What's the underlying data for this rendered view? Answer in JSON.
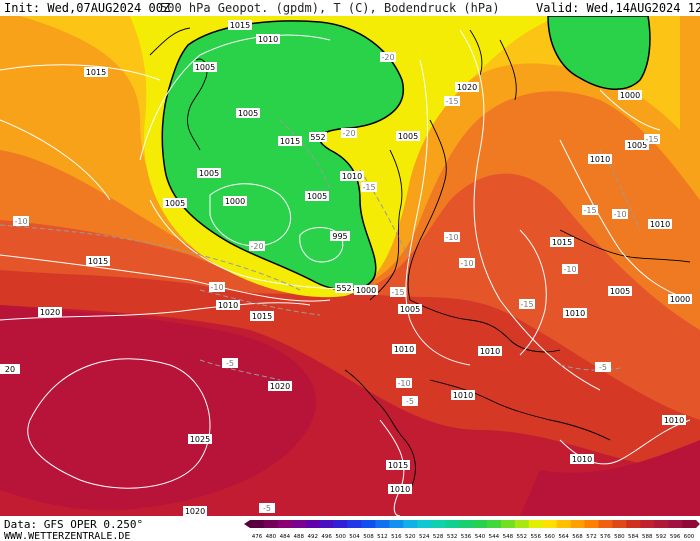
{
  "header": {
    "init": "Init: Wed,07AUG2024 00Z",
    "title": "500 hPa Geopot. (gpdm), T (C), Bodendruck (hPa)",
    "valid": "Valid: Wed,14AUG2024 12Z"
  },
  "footer": {
    "data_source": "Data: GFS OPER 0.250°",
    "website": "WWW.WETTERZENTRALE.DE"
  },
  "colorbar": {
    "ticks": [
      "476",
      "480",
      "484",
      "488",
      "492",
      "496",
      "500",
      "504",
      "508",
      "512",
      "516",
      "520",
      "524",
      "528",
      "532",
      "536",
      "540",
      "544",
      "548",
      "552",
      "556",
      "560",
      "564",
      "568",
      "572",
      "576",
      "580",
      "584",
      "588",
      "592",
      "596",
      "600"
    ],
    "colors": [
      "#5a0040",
      "#74005a",
      "#8a0074",
      "#7a0090",
      "#6000a8",
      "#4810c0",
      "#3020d8",
      "#2038e8",
      "#1050f0",
      "#1070f0",
      "#1090f0",
      "#10b0e8",
      "#10c8d0",
      "#10d0b0",
      "#10d090",
      "#18d070",
      "#28d050",
      "#40d838",
      "#70e020",
      "#a8e810",
      "#e0f000",
      "#ffe000",
      "#ffc000",
      "#ffa000",
      "#ff8000",
      "#f06010",
      "#e04818",
      "#d03020",
      "#c02030",
      "#b01838",
      "#a01040",
      "#900838"
    ]
  },
  "pressure_labels": {
    "p1015": "1015",
    "p1010": "1010",
    "p1005": "1005",
    "p1000": "1000",
    "p995": "995",
    "p1020": "1020",
    "p1025": "1025",
    "p20": "20"
  },
  "temp_labels": {
    "t_m20": "-20",
    "t_m15": "-15",
    "t_m10": "-10",
    "t_m5": "-5"
  },
  "geopot_labels": {
    "g552": "552"
  },
  "colors": {
    "deep_red": "#b0143a",
    "red": "#d23a26",
    "red_orange": "#e4562a",
    "orange": "#f07a22",
    "light_orange": "#f8a21a",
    "yellow_orange": "#fcc414",
    "yellow": "#f8f000",
    "green": "#2ad24a",
    "bright_green": "#3ce03a"
  }
}
